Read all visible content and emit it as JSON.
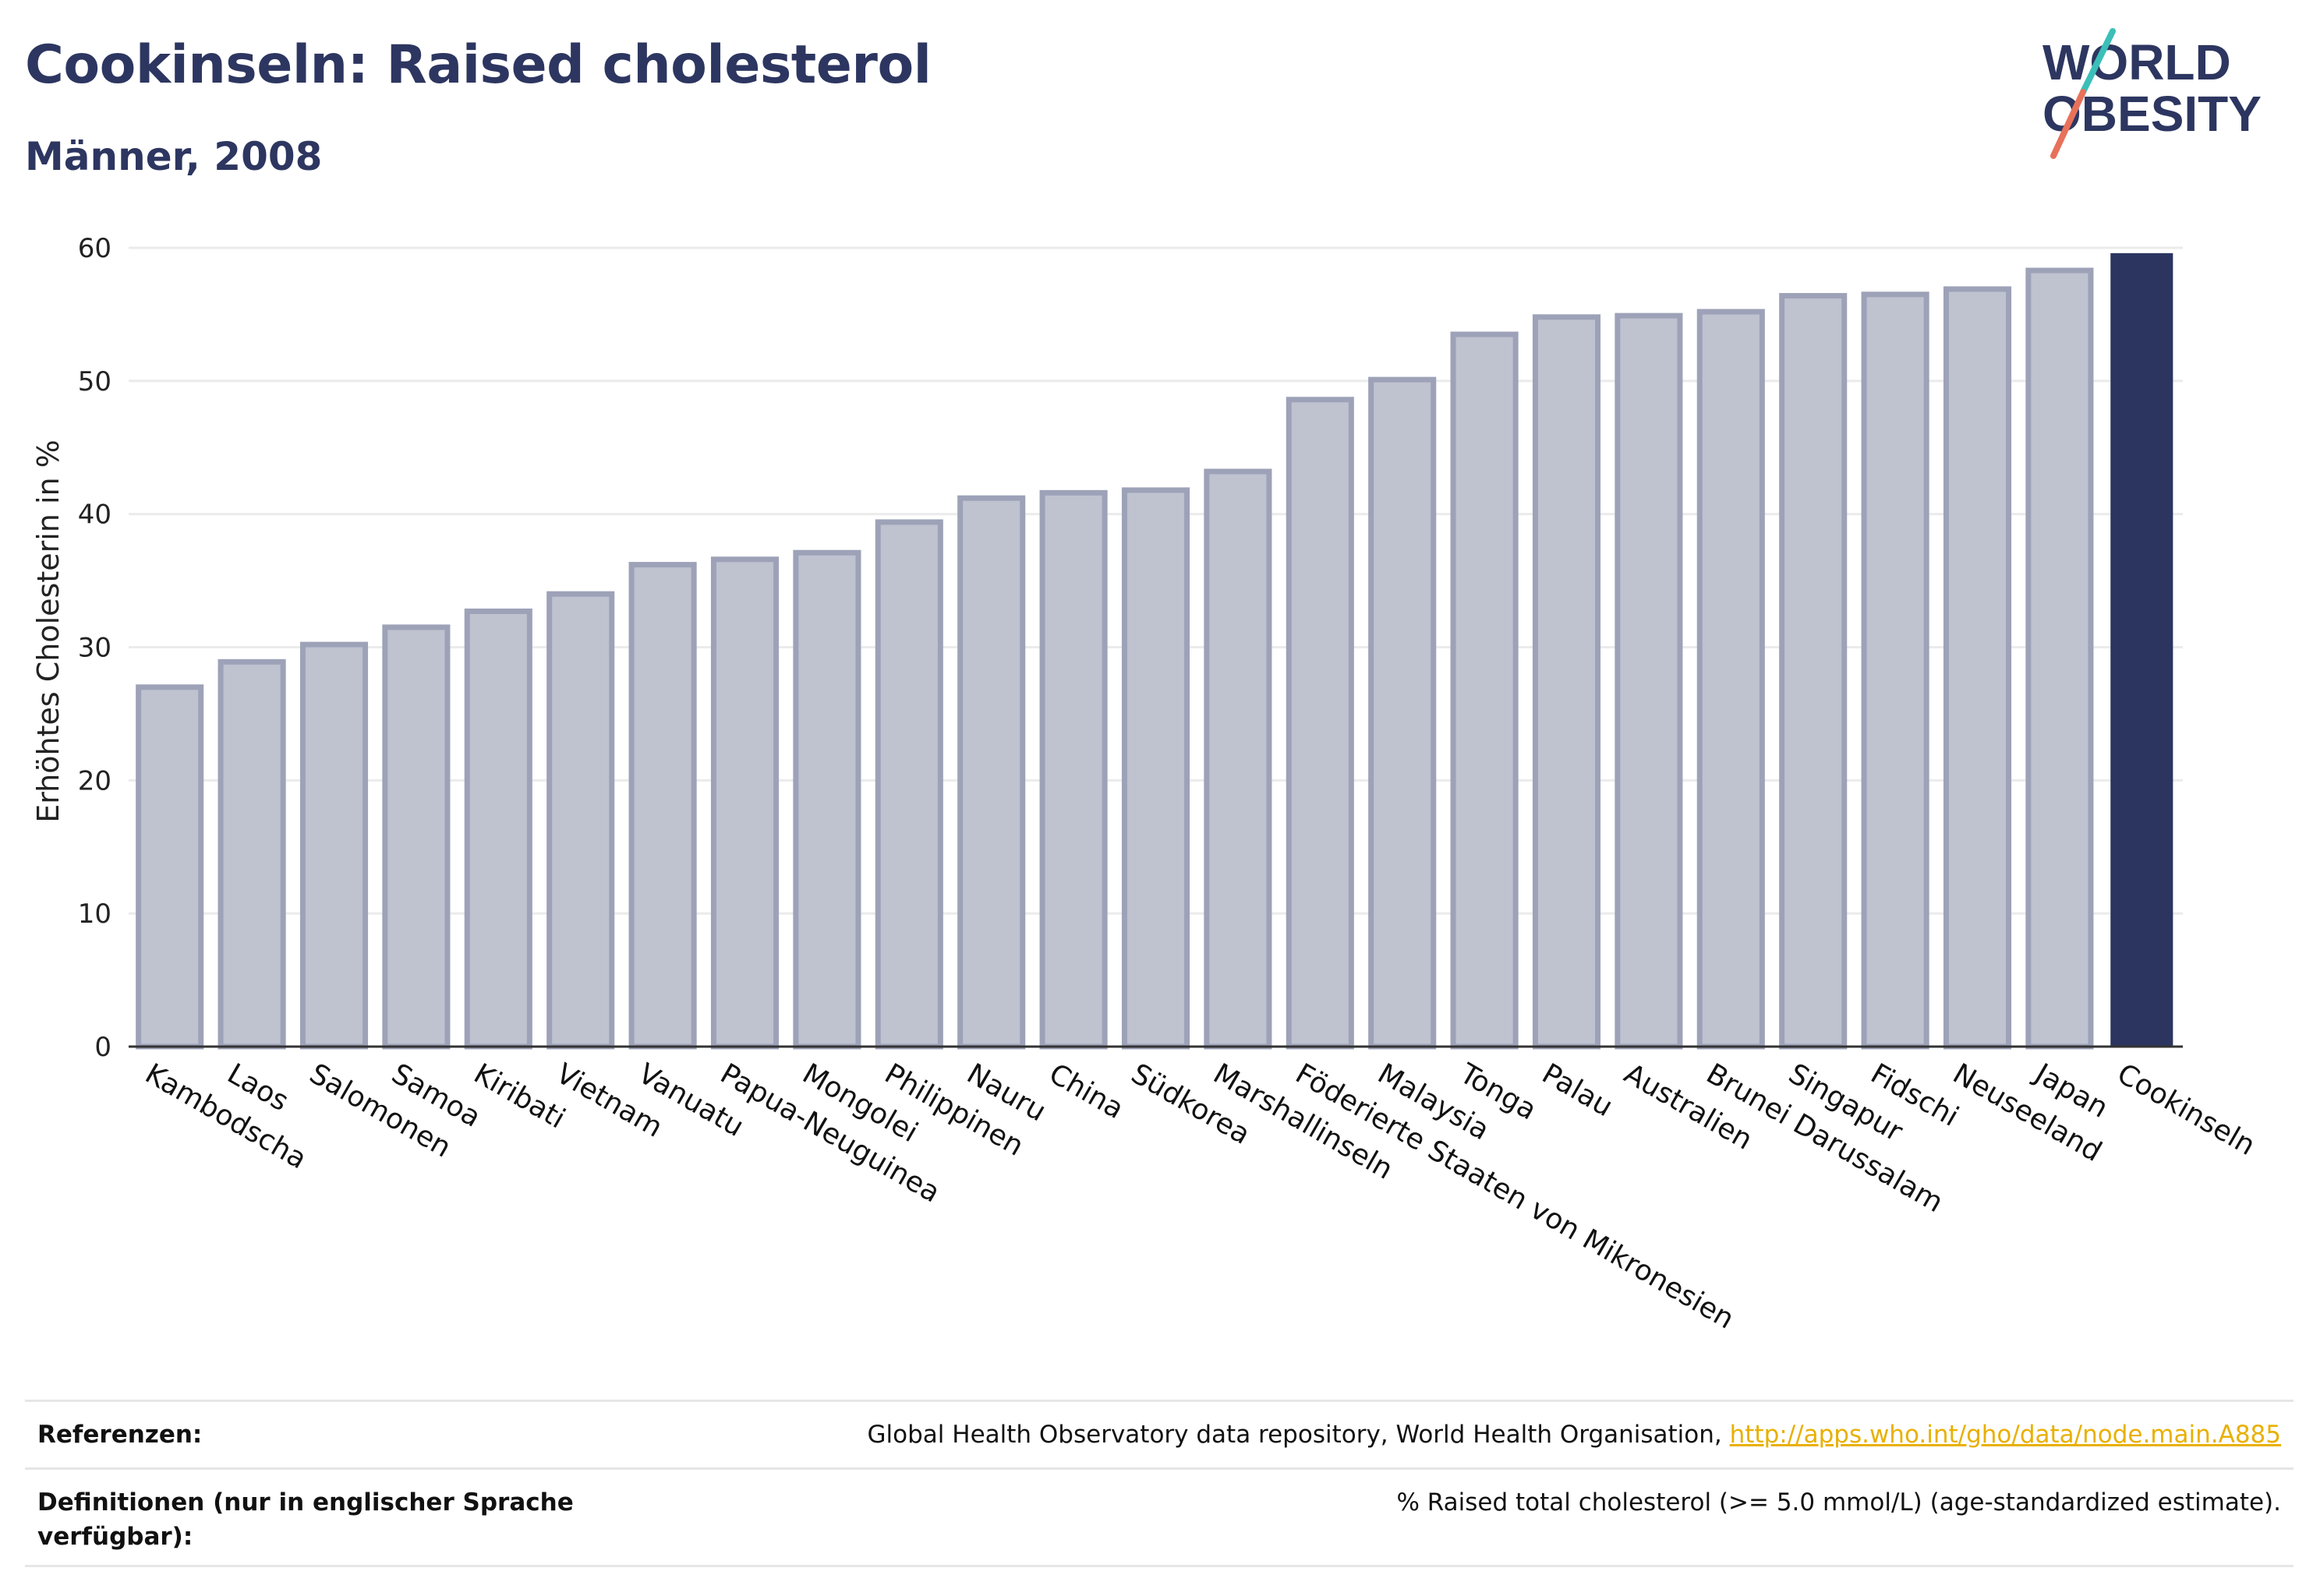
{
  "header": {
    "title": "Cookinseln: Raised cholesterol",
    "subtitle": "Männer, 2008"
  },
  "logo": {
    "line1": "WORLD",
    "line2": "OBESITY",
    "colors": {
      "text": "#2d3660",
      "slash_teal": "#3bbfb8",
      "slash_coral": "#e8715a"
    }
  },
  "colors": {
    "bar_fill": "#bfc2cf",
    "bar_stroke": "#9da2b8",
    "highlight": "#2b3560",
    "grid": "#ebebeb",
    "axis": "#333333"
  },
  "chart_data": {
    "type": "bar",
    "ylabel": "Erhöhtes Cholesterin in %",
    "ylim": [
      0,
      60
    ],
    "yticks": [
      0,
      10,
      20,
      30,
      40,
      50,
      60
    ],
    "grid": true,
    "highlight_category": "Cookinseln",
    "categories": [
      "Kambodscha",
      "Laos",
      "Salomonen",
      "Samoa",
      "Kiribati",
      "Vietnam",
      "Vanuatu",
      "Papua-Neuguinea",
      "Mongolei",
      "Philippinen",
      "Nauru",
      "China",
      "Südkorea",
      "Marshallinseln",
      "Föderierte Staaten von Mikronesien",
      "Malaysia",
      "Tonga",
      "Palau",
      "Australien",
      "Brunei Darussalam",
      "Singapur",
      "Fidschi",
      "Neuseeland",
      "Japan",
      "Cookinseln"
    ],
    "values": [
      27.0,
      28.9,
      30.2,
      31.5,
      32.7,
      34.0,
      36.2,
      36.6,
      37.1,
      39.4,
      41.2,
      41.6,
      41.8,
      43.2,
      48.6,
      50.1,
      53.5,
      54.8,
      54.9,
      55.2,
      56.4,
      56.5,
      56.9,
      58.3,
      59.6
    ]
  },
  "references": {
    "ref_label": "Referenzen:",
    "ref_text": "Global Health Observatory data repository, World Health Organisation, ",
    "ref_link": "http://apps.who.int/gho/data/node.main.A885",
    "def_label": "Definitionen (nur in englischer Sprache verfügbar):",
    "def_text": "% Raised total cholesterol (>= 5.0 mmol/L) (age-standardized estimate)."
  }
}
